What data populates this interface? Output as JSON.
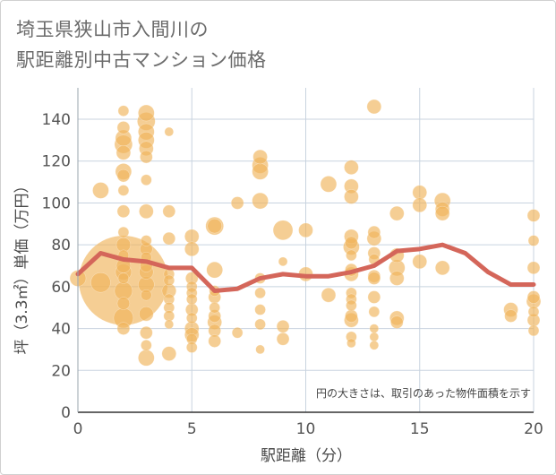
{
  "chart_data": {
    "type": "scatter",
    "title_lines": [
      "埼玉県狭山市入間川の",
      "駅距離別中古マンション価格"
    ],
    "xlabel": "駅距離（分）",
    "ylabel": "坪（3.3㎡）単価（万円）",
    "xlim": [
      0,
      20
    ],
    "ylim": [
      0,
      155
    ],
    "xticks": [
      "0",
      "5",
      "10",
      "15",
      "20"
    ],
    "yticks": [
      "0",
      "20",
      "40",
      "60",
      "80",
      "100",
      "120",
      "140"
    ],
    "grid": true,
    "annotation": "円の大きさは、取引のあった物件面積を示す",
    "colors": {
      "bubble": "#f0b45a",
      "line": "#d4665a",
      "grid": "#c8d3df"
    },
    "series": [
      {
        "type": "bubble",
        "points": [
          {
            "x": 0,
            "y": 64,
            "s": 9
          },
          {
            "x": 1,
            "y": 106,
            "s": 9
          },
          {
            "x": 1,
            "y": 62,
            "s": 11
          },
          {
            "x": 2,
            "y": 63,
            "s": 50
          },
          {
            "x": 2,
            "y": 144,
            "s": 6
          },
          {
            "x": 2,
            "y": 136,
            "s": 7
          },
          {
            "x": 2,
            "y": 131,
            "s": 9
          },
          {
            "x": 2,
            "y": 128,
            "s": 10
          },
          {
            "x": 2,
            "y": 124,
            "s": 8
          },
          {
            "x": 2,
            "y": 115,
            "s": 9
          },
          {
            "x": 2,
            "y": 113,
            "s": 7
          },
          {
            "x": 2,
            "y": 106,
            "s": 6
          },
          {
            "x": 2,
            "y": 96,
            "s": 7
          },
          {
            "x": 2,
            "y": 86,
            "s": 6
          },
          {
            "x": 2,
            "y": 80,
            "s": 8
          },
          {
            "x": 2,
            "y": 75,
            "s": 6
          },
          {
            "x": 2,
            "y": 70,
            "s": 8
          },
          {
            "x": 2,
            "y": 67,
            "s": 9
          },
          {
            "x": 2,
            "y": 64,
            "s": 6
          },
          {
            "x": 2,
            "y": 58,
            "s": 10
          },
          {
            "x": 2,
            "y": 52,
            "s": 7
          },
          {
            "x": 2,
            "y": 45,
            "s": 11
          },
          {
            "x": 2,
            "y": 40,
            "s": 7
          },
          {
            "x": 3,
            "y": 143,
            "s": 9
          },
          {
            "x": 3,
            "y": 139,
            "s": 10
          },
          {
            "x": 3,
            "y": 134,
            "s": 9
          },
          {
            "x": 3,
            "y": 130,
            "s": 9
          },
          {
            "x": 3,
            "y": 126,
            "s": 8
          },
          {
            "x": 3,
            "y": 122,
            "s": 7
          },
          {
            "x": 3,
            "y": 111,
            "s": 6
          },
          {
            "x": 3,
            "y": 96,
            "s": 8
          },
          {
            "x": 3,
            "y": 82,
            "s": 6
          },
          {
            "x": 3,
            "y": 78,
            "s": 7
          },
          {
            "x": 3,
            "y": 74,
            "s": 6
          },
          {
            "x": 3,
            "y": 70,
            "s": 7
          },
          {
            "x": 3,
            "y": 67,
            "s": 8
          },
          {
            "x": 3,
            "y": 61,
            "s": 9
          },
          {
            "x": 3,
            "y": 56,
            "s": 6
          },
          {
            "x": 3,
            "y": 47,
            "s": 8
          },
          {
            "x": 3,
            "y": 38,
            "s": 7
          },
          {
            "x": 3,
            "y": 32,
            "s": 6
          },
          {
            "x": 3,
            "y": 26,
            "s": 9
          },
          {
            "x": 4,
            "y": 134,
            "s": 5
          },
          {
            "x": 4,
            "y": 96,
            "s": 7
          },
          {
            "x": 4,
            "y": 83,
            "s": 7
          },
          {
            "x": 4,
            "y": 66,
            "s": 6
          },
          {
            "x": 4,
            "y": 63,
            "s": 6
          },
          {
            "x": 4,
            "y": 58,
            "s": 8
          },
          {
            "x": 4,
            "y": 54,
            "s": 6
          },
          {
            "x": 4,
            "y": 50,
            "s": 6
          },
          {
            "x": 4,
            "y": 46,
            "s": 6
          },
          {
            "x": 4,
            "y": 42,
            "s": 5
          },
          {
            "x": 4,
            "y": 28,
            "s": 8
          },
          {
            "x": 5,
            "y": 84,
            "s": 8
          },
          {
            "x": 5,
            "y": 78,
            "s": 8
          },
          {
            "x": 5,
            "y": 64,
            "s": 7
          },
          {
            "x": 5,
            "y": 60,
            "s": 6
          },
          {
            "x": 5,
            "y": 57,
            "s": 6
          },
          {
            "x": 5,
            "y": 54,
            "s": 6
          },
          {
            "x": 5,
            "y": 49,
            "s": 7
          },
          {
            "x": 5,
            "y": 45,
            "s": 6
          },
          {
            "x": 5,
            "y": 40,
            "s": 8
          },
          {
            "x": 5,
            "y": 37,
            "s": 8
          },
          {
            "x": 5,
            "y": 35,
            "s": 6
          },
          {
            "x": 5,
            "y": 31,
            "s": 6
          },
          {
            "x": 6,
            "y": 89,
            "s": 10
          },
          {
            "x": 6,
            "y": 89,
            "s": 8
          },
          {
            "x": 6,
            "y": 68,
            "s": 9
          },
          {
            "x": 6,
            "y": 58,
            "s": 6
          },
          {
            "x": 6,
            "y": 55,
            "s": 7
          },
          {
            "x": 6,
            "y": 50,
            "s": 6
          },
          {
            "x": 6,
            "y": 46,
            "s": 7
          },
          {
            "x": 6,
            "y": 43,
            "s": 8
          },
          {
            "x": 6,
            "y": 39,
            "s": 7
          },
          {
            "x": 6,
            "y": 34,
            "s": 7
          },
          {
            "x": 7,
            "y": 100,
            "s": 7
          },
          {
            "x": 7,
            "y": 38,
            "s": 6
          },
          {
            "x": 8,
            "y": 122,
            "s": 8
          },
          {
            "x": 8,
            "y": 118,
            "s": 9
          },
          {
            "x": 8,
            "y": 115,
            "s": 9
          },
          {
            "x": 8,
            "y": 101,
            "s": 9
          },
          {
            "x": 8,
            "y": 64,
            "s": 6
          },
          {
            "x": 8,
            "y": 57,
            "s": 6
          },
          {
            "x": 8,
            "y": 49,
            "s": 6
          },
          {
            "x": 8,
            "y": 42,
            "s": 6
          },
          {
            "x": 8,
            "y": 30,
            "s": 5
          },
          {
            "x": 9,
            "y": 87,
            "s": 11
          },
          {
            "x": 9,
            "y": 72,
            "s": 5
          },
          {
            "x": 9,
            "y": 41,
            "s": 7
          },
          {
            "x": 9,
            "y": 35,
            "s": 7
          },
          {
            "x": 10,
            "y": 87,
            "s": 8
          },
          {
            "x": 10,
            "y": 66,
            "s": 8
          },
          {
            "x": 11,
            "y": 109,
            "s": 9
          },
          {
            "x": 11,
            "y": 56,
            "s": 8
          },
          {
            "x": 12,
            "y": 117,
            "s": 8
          },
          {
            "x": 12,
            "y": 108,
            "s": 8
          },
          {
            "x": 12,
            "y": 103,
            "s": 8
          },
          {
            "x": 12,
            "y": 84,
            "s": 8
          },
          {
            "x": 12,
            "y": 81,
            "s": 7
          },
          {
            "x": 12,
            "y": 79,
            "s": 9
          },
          {
            "x": 12,
            "y": 75,
            "s": 6
          },
          {
            "x": 12,
            "y": 68,
            "s": 7
          },
          {
            "x": 12,
            "y": 66,
            "s": 8
          },
          {
            "x": 12,
            "y": 57,
            "s": 6
          },
          {
            "x": 12,
            "y": 54,
            "s": 6
          },
          {
            "x": 12,
            "y": 51,
            "s": 6
          },
          {
            "x": 12,
            "y": 46,
            "s": 7
          },
          {
            "x": 12,
            "y": 44,
            "s": 8
          },
          {
            "x": 12,
            "y": 36,
            "s": 6
          },
          {
            "x": 12,
            "y": 33,
            "s": 5
          },
          {
            "x": 13,
            "y": 146,
            "s": 8
          },
          {
            "x": 13,
            "y": 86,
            "s": 7
          },
          {
            "x": 13,
            "y": 83,
            "s": 8
          },
          {
            "x": 13,
            "y": 76,
            "s": 7
          },
          {
            "x": 13,
            "y": 73,
            "s": 6
          },
          {
            "x": 13,
            "y": 65,
            "s": 7
          },
          {
            "x": 13,
            "y": 64,
            "s": 7
          },
          {
            "x": 13,
            "y": 55,
            "s": 7
          },
          {
            "x": 13,
            "y": 48,
            "s": 6
          },
          {
            "x": 13,
            "y": 40,
            "s": 5
          },
          {
            "x": 13,
            "y": 36,
            "s": 5
          },
          {
            "x": 13,
            "y": 32,
            "s": 5
          },
          {
            "x": 14,
            "y": 95,
            "s": 8
          },
          {
            "x": 14,
            "y": 75,
            "s": 8
          },
          {
            "x": 14,
            "y": 69,
            "s": 9
          },
          {
            "x": 14,
            "y": 64,
            "s": 8
          },
          {
            "x": 14,
            "y": 45,
            "s": 8
          },
          {
            "x": 14,
            "y": 43,
            "s": 7
          },
          {
            "x": 15,
            "y": 105,
            "s": 8
          },
          {
            "x": 15,
            "y": 99,
            "s": 8
          },
          {
            "x": 15,
            "y": 72,
            "s": 8
          },
          {
            "x": 16,
            "y": 101,
            "s": 9
          },
          {
            "x": 16,
            "y": 97,
            "s": 8
          },
          {
            "x": 16,
            "y": 95,
            "s": 8
          },
          {
            "x": 16,
            "y": 69,
            "s": 8
          },
          {
            "x": 19,
            "y": 49,
            "s": 8
          },
          {
            "x": 19,
            "y": 46,
            "s": 7
          },
          {
            "x": 20,
            "y": 94,
            "s": 7
          },
          {
            "x": 20,
            "y": 82,
            "s": 6
          },
          {
            "x": 20,
            "y": 69,
            "s": 7
          },
          {
            "x": 20,
            "y": 55,
            "s": 7
          },
          {
            "x": 20,
            "y": 53,
            "s": 8
          },
          {
            "x": 20,
            "y": 48,
            "s": 6
          },
          {
            "x": 20,
            "y": 44,
            "s": 7
          },
          {
            "x": 20,
            "y": 39,
            "s": 6
          }
        ]
      },
      {
        "type": "line",
        "x": [
          0,
          1,
          2,
          3,
          4,
          5,
          6,
          7,
          8,
          9,
          10,
          11,
          12,
          13,
          14,
          15,
          16,
          17,
          18,
          19,
          20
        ],
        "y": [
          66,
          76,
          73,
          72,
          69,
          69,
          58,
          59,
          64,
          66,
          65,
          65,
          67,
          70,
          77,
          78,
          80,
          76,
          67,
          61,
          61
        ]
      }
    ]
  }
}
